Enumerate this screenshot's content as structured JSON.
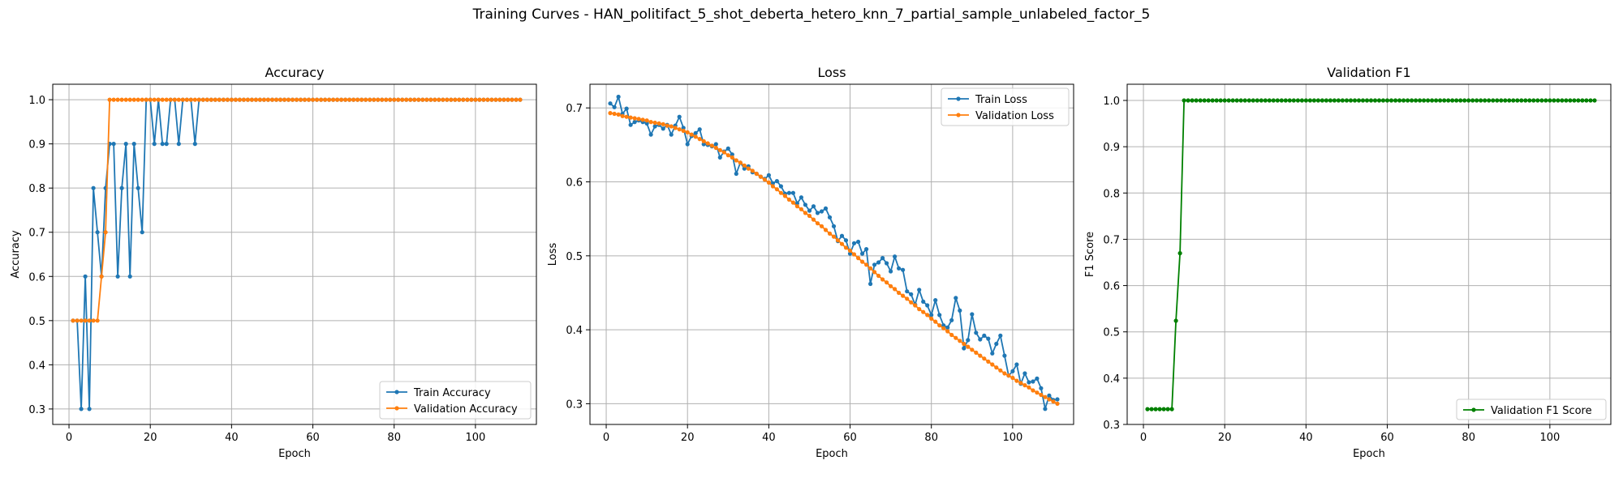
{
  "suptitle": "Training Curves - HAN_politifact_5_shot_deberta_hetero_knn_7_partial_sample_unlabeled_factor_5",
  "colors": {
    "train": "#1f77b4",
    "validation": "#ff7f0e",
    "f1": "#008000",
    "grid": "#b0b0b0"
  },
  "chart_data": [
    {
      "type": "line",
      "title": "Accuracy",
      "xlabel": "Epoch",
      "ylabel": "Accuracy",
      "xlim": [
        -4,
        115
      ],
      "ylim": [
        0.265,
        1.035
      ],
      "xticks": [
        0,
        20,
        40,
        60,
        80,
        100
      ],
      "yticks": [
        0.3,
        0.4,
        0.5,
        0.6,
        0.7,
        0.8,
        0.9,
        1.0
      ],
      "ytick_labels": [
        "0.3",
        "0.4",
        "0.5",
        "0.6",
        "0.7",
        "0.8",
        "0.9",
        "1.0"
      ],
      "grid": true,
      "legend_position": "lower-right",
      "x": [
        1,
        2,
        3,
        4,
        5,
        6,
        7,
        8,
        9,
        10,
        11,
        12,
        13,
        14,
        15,
        16,
        17,
        18,
        19,
        20,
        21,
        22,
        23,
        24,
        25,
        26,
        27,
        28,
        29,
        30,
        31,
        32,
        33,
        34,
        35,
        36,
        37,
        38,
        39,
        40,
        41,
        42,
        43,
        44,
        45,
        46,
        47,
        48,
        49,
        50,
        51,
        52,
        53,
        54,
        55,
        56,
        57,
        58,
        59,
        60,
        61,
        62,
        63,
        64,
        65,
        66,
        67,
        68,
        69,
        70,
        71,
        72,
        73,
        74,
        75,
        76,
        77,
        78,
        79,
        80,
        81,
        82,
        83,
        84,
        85,
        86,
        87,
        88,
        89,
        90,
        91,
        92,
        93,
        94,
        95,
        96,
        97,
        98,
        99,
        100,
        101,
        102,
        103,
        104,
        105,
        106,
        107,
        108,
        109,
        110,
        111
      ],
      "series": [
        {
          "name": "Train Accuracy",
          "color": "#1f77b4",
          "values": [
            0.5,
            0.5,
            0.3,
            0.6,
            0.3,
            0.8,
            0.7,
            0.6,
            0.8,
            0.9,
            0.9,
            0.6,
            0.8,
            0.9,
            0.6,
            0.9,
            0.8,
            0.7,
            1.0,
            1.0,
            0.9,
            1.0,
            0.9,
            0.9,
            1.0,
            1.0,
            0.9,
            1.0,
            1.0,
            1.0,
            0.9,
            1.0,
            1.0,
            1.0,
            1.0,
            1.0,
            1.0,
            1.0,
            1.0,
            1.0,
            1.0,
            1.0,
            1.0,
            1.0,
            1.0,
            1.0,
            1.0,
            1.0,
            1.0,
            1.0,
            1.0,
            1.0,
            1.0,
            1.0,
            1.0,
            1.0,
            1.0,
            1.0,
            1.0,
            1.0,
            1.0,
            1.0,
            1.0,
            1.0,
            1.0,
            1.0,
            1.0,
            1.0,
            1.0,
            1.0,
            1.0,
            1.0,
            1.0,
            1.0,
            1.0,
            1.0,
            1.0,
            1.0,
            1.0,
            1.0,
            1.0,
            1.0,
            1.0,
            1.0,
            1.0,
            1.0,
            1.0,
            1.0,
            1.0,
            1.0,
            1.0,
            1.0,
            1.0,
            1.0,
            1.0,
            1.0,
            1.0,
            1.0,
            1.0,
            1.0,
            1.0,
            1.0,
            1.0,
            1.0,
            1.0,
            1.0,
            1.0,
            1.0,
            1.0,
            1.0,
            1.0
          ]
        },
        {
          "name": "Validation Accuracy",
          "color": "#ff7f0e",
          "values": [
            0.5,
            0.5,
            0.5,
            0.5,
            0.5,
            0.5,
            0.5,
            0.6,
            0.7,
            1.0,
            1.0,
            1.0,
            1.0,
            1.0,
            1.0,
            1.0,
            1.0,
            1.0,
            1.0,
            1.0,
            1.0,
            1.0,
            1.0,
            1.0,
            1.0,
            1.0,
            1.0,
            1.0,
            1.0,
            1.0,
            1.0,
            1.0,
            1.0,
            1.0,
            1.0,
            1.0,
            1.0,
            1.0,
            1.0,
            1.0,
            1.0,
            1.0,
            1.0,
            1.0,
            1.0,
            1.0,
            1.0,
            1.0,
            1.0,
            1.0,
            1.0,
            1.0,
            1.0,
            1.0,
            1.0,
            1.0,
            1.0,
            1.0,
            1.0,
            1.0,
            1.0,
            1.0,
            1.0,
            1.0,
            1.0,
            1.0,
            1.0,
            1.0,
            1.0,
            1.0,
            1.0,
            1.0,
            1.0,
            1.0,
            1.0,
            1.0,
            1.0,
            1.0,
            1.0,
            1.0,
            1.0,
            1.0,
            1.0,
            1.0,
            1.0,
            1.0,
            1.0,
            1.0,
            1.0,
            1.0,
            1.0,
            1.0,
            1.0,
            1.0,
            1.0,
            1.0,
            1.0,
            1.0,
            1.0,
            1.0,
            1.0,
            1.0,
            1.0,
            1.0,
            1.0,
            1.0,
            1.0,
            1.0,
            1.0,
            1.0,
            1.0
          ]
        }
      ]
    },
    {
      "type": "line",
      "title": "Loss",
      "xlabel": "Epoch",
      "ylabel": "Loss",
      "xlim": [
        -4,
        115
      ],
      "ylim": [
        0.272,
        0.732
      ],
      "xticks": [
        0,
        20,
        40,
        60,
        80,
        100
      ],
      "yticks": [
        0.3,
        0.4,
        0.5,
        0.6,
        0.7
      ],
      "ytick_labels": [
        "0.3",
        "0.4",
        "0.5",
        "0.6",
        "0.7"
      ],
      "grid": true,
      "legend_position": "upper-right",
      "x": [
        1,
        2,
        3,
        4,
        5,
        6,
        7,
        8,
        9,
        10,
        11,
        12,
        13,
        14,
        15,
        16,
        17,
        18,
        19,
        20,
        21,
        22,
        23,
        24,
        25,
        26,
        27,
        28,
        29,
        30,
        31,
        32,
        33,
        34,
        35,
        36,
        37,
        38,
        39,
        40,
        41,
        42,
        43,
        44,
        45,
        46,
        47,
        48,
        49,
        50,
        51,
        52,
        53,
        54,
        55,
        56,
        57,
        58,
        59,
        60,
        61,
        62,
        63,
        64,
        65,
        66,
        67,
        68,
        69,
        70,
        71,
        72,
        73,
        74,
        75,
        76,
        77,
        78,
        79,
        80,
        81,
        82,
        83,
        84,
        85,
        86,
        87,
        88,
        89,
        90,
        91,
        92,
        93,
        94,
        95,
        96,
        97,
        98,
        99,
        100,
        101,
        102,
        103,
        104,
        105,
        106,
        107,
        108,
        109,
        110,
        111
      ],
      "series": [
        {
          "name": "Train Loss",
          "color": "#1f77b4",
          "values": [
            0.706,
            0.701,
            0.715,
            0.692,
            0.699,
            0.677,
            0.681,
            0.683,
            0.681,
            0.679,
            0.664,
            0.675,
            0.677,
            0.672,
            0.677,
            0.664,
            0.676,
            0.688,
            0.673,
            0.651,
            0.662,
            0.666,
            0.671,
            0.651,
            0.65,
            0.648,
            0.651,
            0.633,
            0.641,
            0.645,
            0.637,
            0.611,
            0.626,
            0.618,
            0.621,
            0.613,
            0.611,
            0.607,
            0.604,
            0.609,
            0.598,
            0.601,
            0.594,
            0.584,
            0.585,
            0.585,
            0.571,
            0.579,
            0.569,
            0.561,
            0.567,
            0.558,
            0.56,
            0.564,
            0.552,
            0.54,
            0.52,
            0.527,
            0.521,
            0.503,
            0.517,
            0.519,
            0.503,
            0.509,
            0.462,
            0.488,
            0.491,
            0.497,
            0.49,
            0.479,
            0.499,
            0.483,
            0.481,
            0.452,
            0.448,
            0.434,
            0.454,
            0.438,
            0.433,
            0.42,
            0.44,
            0.42,
            0.406,
            0.403,
            0.413,
            0.443,
            0.426,
            0.375,
            0.386,
            0.421,
            0.396,
            0.387,
            0.392,
            0.388,
            0.368,
            0.381,
            0.392,
            0.365,
            0.338,
            0.344,
            0.353,
            0.327,
            0.341,
            0.329,
            0.33,
            0.334,
            0.321,
            0.293,
            0.311,
            0.305,
            0.306
          ]
        },
        {
          "name": "Validation Loss",
          "color": "#ff7f0e",
          "values": [
            0.693,
            0.692,
            0.691,
            0.689,
            0.688,
            0.687,
            0.686,
            0.685,
            0.684,
            0.683,
            0.681,
            0.68,
            0.679,
            0.678,
            0.676,
            0.675,
            0.673,
            0.671,
            0.669,
            0.667,
            0.664,
            0.661,
            0.658,
            0.655,
            0.652,
            0.649,
            0.646,
            0.643,
            0.64,
            0.636,
            0.633,
            0.629,
            0.626,
            0.622,
            0.618,
            0.615,
            0.611,
            0.607,
            0.603,
            0.599,
            0.594,
            0.59,
            0.585,
            0.581,
            0.576,
            0.572,
            0.567,
            0.563,
            0.558,
            0.554,
            0.549,
            0.544,
            0.54,
            0.535,
            0.53,
            0.526,
            0.521,
            0.516,
            0.511,
            0.507,
            0.502,
            0.497,
            0.492,
            0.488,
            0.483,
            0.478,
            0.473,
            0.468,
            0.464,
            0.459,
            0.455,
            0.45,
            0.446,
            0.442,
            0.437,
            0.433,
            0.428,
            0.424,
            0.42,
            0.415,
            0.411,
            0.406,
            0.402,
            0.398,
            0.393,
            0.389,
            0.385,
            0.381,
            0.377,
            0.373,
            0.369,
            0.365,
            0.361,
            0.357,
            0.353,
            0.349,
            0.345,
            0.341,
            0.338,
            0.335,
            0.331,
            0.328,
            0.325,
            0.322,
            0.318,
            0.315,
            0.312,
            0.309,
            0.306,
            0.303,
            0.3
          ]
        }
      ]
    },
    {
      "type": "line",
      "title": "Validation F1",
      "xlabel": "Epoch",
      "ylabel": "F1 Score",
      "xlim": [
        -4,
        115
      ],
      "ylim": [
        0.3,
        1.035
      ],
      "xticks": [
        0,
        20,
        40,
        60,
        80,
        100
      ],
      "yticks": [
        0.3,
        0.4,
        0.5,
        0.6,
        0.7,
        0.8,
        0.9,
        1.0
      ],
      "ytick_labels": [
        "0.3",
        "0.4",
        "0.5",
        "0.6",
        "0.7",
        "0.8",
        "0.9",
        "1.0"
      ],
      "grid": true,
      "legend_position": "lower-right",
      "x": [
        1,
        2,
        3,
        4,
        5,
        6,
        7,
        8,
        9,
        10,
        11,
        12,
        13,
        14,
        15,
        16,
        17,
        18,
        19,
        20,
        21,
        22,
        23,
        24,
        25,
        26,
        27,
        28,
        29,
        30,
        31,
        32,
        33,
        34,
        35,
        36,
        37,
        38,
        39,
        40,
        41,
        42,
        43,
        44,
        45,
        46,
        47,
        48,
        49,
        50,
        51,
        52,
        53,
        54,
        55,
        56,
        57,
        58,
        59,
        60,
        61,
        62,
        63,
        64,
        65,
        66,
        67,
        68,
        69,
        70,
        71,
        72,
        73,
        74,
        75,
        76,
        77,
        78,
        79,
        80,
        81,
        82,
        83,
        84,
        85,
        86,
        87,
        88,
        89,
        90,
        91,
        92,
        93,
        94,
        95,
        96,
        97,
        98,
        99,
        100,
        101,
        102,
        103,
        104,
        105,
        106,
        107,
        108,
        109,
        110,
        111
      ],
      "series": [
        {
          "name": "Validation F1 Score",
          "color": "#008000",
          "values": [
            0.333,
            0.333,
            0.333,
            0.333,
            0.333,
            0.333,
            0.333,
            0.524,
            0.67,
            1.0,
            1.0,
            1.0,
            1.0,
            1.0,
            1.0,
            1.0,
            1.0,
            1.0,
            1.0,
            1.0,
            1.0,
            1.0,
            1.0,
            1.0,
            1.0,
            1.0,
            1.0,
            1.0,
            1.0,
            1.0,
            1.0,
            1.0,
            1.0,
            1.0,
            1.0,
            1.0,
            1.0,
            1.0,
            1.0,
            1.0,
            1.0,
            1.0,
            1.0,
            1.0,
            1.0,
            1.0,
            1.0,
            1.0,
            1.0,
            1.0,
            1.0,
            1.0,
            1.0,
            1.0,
            1.0,
            1.0,
            1.0,
            1.0,
            1.0,
            1.0,
            1.0,
            1.0,
            1.0,
            1.0,
            1.0,
            1.0,
            1.0,
            1.0,
            1.0,
            1.0,
            1.0,
            1.0,
            1.0,
            1.0,
            1.0,
            1.0,
            1.0,
            1.0,
            1.0,
            1.0,
            1.0,
            1.0,
            1.0,
            1.0,
            1.0,
            1.0,
            1.0,
            1.0,
            1.0,
            1.0,
            1.0,
            1.0,
            1.0,
            1.0,
            1.0,
            1.0,
            1.0,
            1.0,
            1.0,
            1.0,
            1.0,
            1.0,
            1.0,
            1.0,
            1.0,
            1.0,
            1.0,
            1.0,
            1.0,
            1.0,
            1.0
          ]
        }
      ]
    }
  ]
}
